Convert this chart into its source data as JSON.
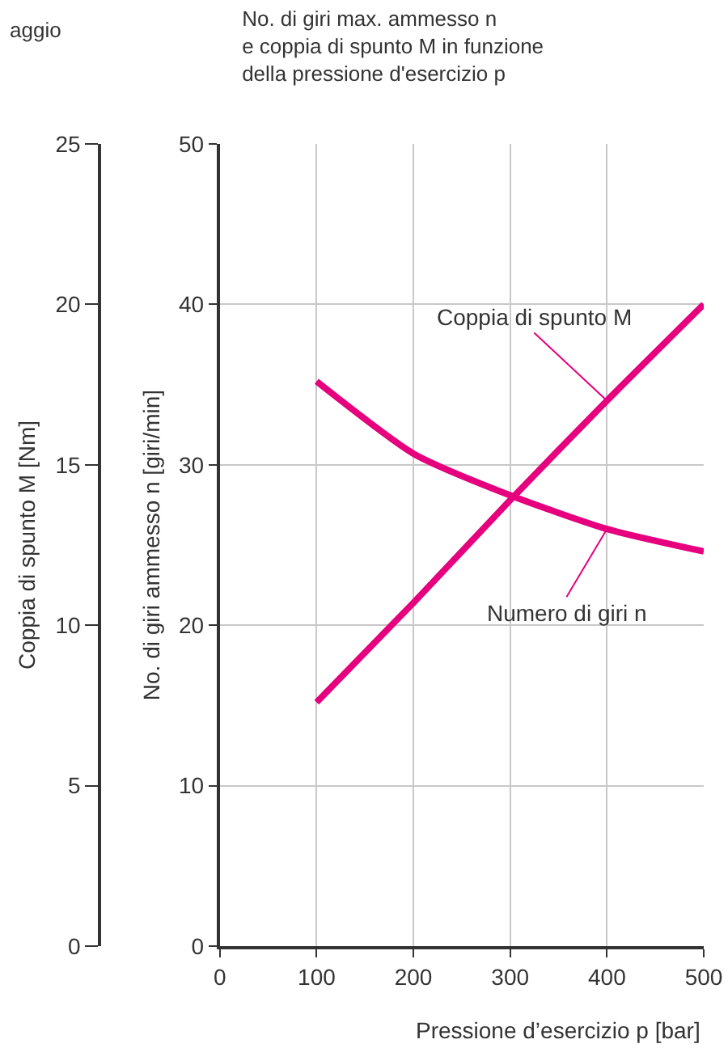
{
  "chart_data": {
    "type": "line",
    "title": "No. di giri max. ammesso n\ne coppia di spunto M in funzione\ndella pressione d'esercizio p",
    "xlabel": "Pressione d’esercizio p [bar]",
    "ylabel": "No. di giri ammesso n [giri/min]",
    "y2label": "Coppia di spunto M [Nm]",
    "annotations": [
      "aggio"
    ],
    "x": [
      100,
      200,
      300,
      400,
      500
    ],
    "series": [
      {
        "name": "Coppia di spunto M",
        "color": "#e6007e",
        "values": [
          7.6,
          10.7,
          13.9,
          17.0,
          20.0
        ],
        "axis": "y2"
      },
      {
        "name": "Numero di giri n",
        "color": "#e6007e",
        "values": [
          35.2,
          30.7,
          28.1,
          26.0,
          24.6
        ]
      }
    ],
    "xlim": [
      0,
      500
    ],
    "xticks": [
      0,
      100,
      200,
      300,
      400,
      500
    ],
    "ylim": [
      0,
      50
    ],
    "yticks": [
      0,
      10,
      20,
      30,
      40,
      50
    ],
    "y2lim": [
      0,
      25
    ],
    "y2ticks": [
      0,
      5,
      10,
      15,
      20,
      25
    ],
    "grid": true,
    "legend": false,
    "marker": "none",
    "line_style": "solid"
  }
}
